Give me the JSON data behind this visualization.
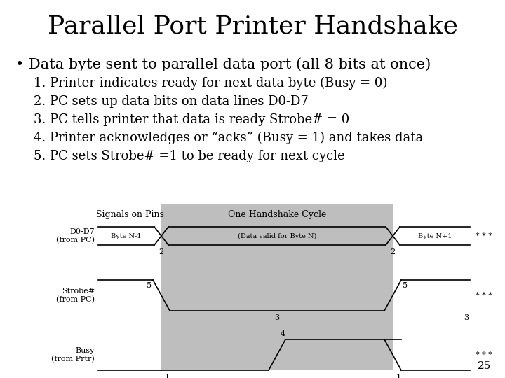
{
  "title": "Parallel Port Printer Handshake",
  "bullet": "• Data byte sent to parallel data port (all 8 bits at once)",
  "steps": [
    "1. Printer indicates ready for next data byte (Busy = 0)",
    "2. PC sets up data bits on data lines D0-D7",
    "3. PC tells printer that data is ready Strobe# = 0",
    "4. Printer acknowledges or “acks” (Busy = 1) and takes data",
    "5. PC sets Strobe# =1 to be ready for next cycle"
  ],
  "bg_color": "#ffffff",
  "text_color": "#000000",
  "diagram_bg": "#bebebe",
  "title_fontsize": 26,
  "bullet_fontsize": 15,
  "step_fontsize": 13,
  "diag_label_fontsize": 9,
  "diag_signal_fontsize": 8,
  "page_number": "25"
}
